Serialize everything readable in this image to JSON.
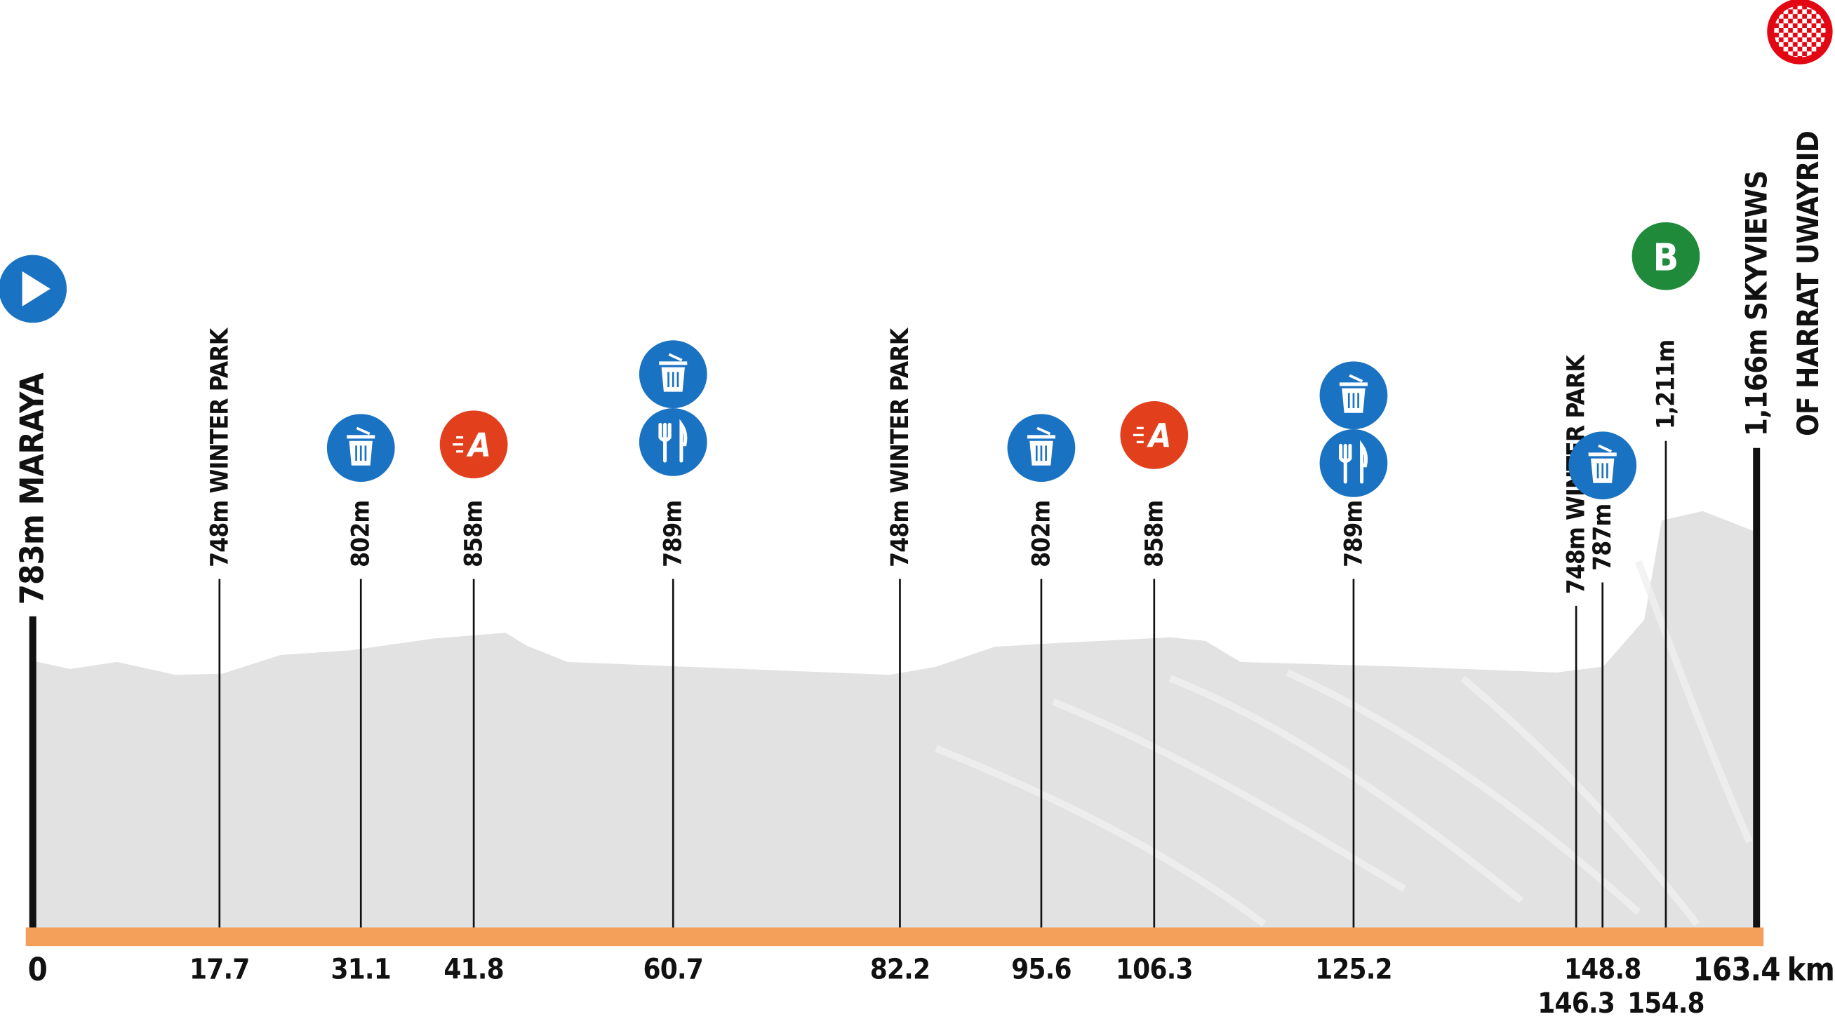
{
  "profile": {
    "distance_unit": "km",
    "points": [
      {
        "km": 0,
        "labels": [
          "783m MARAYA"
        ],
        "icons": [
          {
            "type": "start"
          }
        ]
      },
      {
        "km": 17.7,
        "labels": [
          "748m WINTER PARK"
        ],
        "icons": []
      },
      {
        "km": 31.1,
        "labels": [
          "802m"
        ],
        "icons": [
          {
            "type": "feed"
          }
        ]
      },
      {
        "km": 41.8,
        "labels": [
          "858m"
        ],
        "icons": [
          {
            "type": "sprint",
            "label": "A"
          }
        ]
      },
      {
        "km": 60.7,
        "labels": [
          "789m"
        ],
        "icons": [
          {
            "type": "feed"
          },
          {
            "type": "food"
          }
        ]
      },
      {
        "km": 82.2,
        "labels": [
          "748m WINTER PARK"
        ],
        "icons": []
      },
      {
        "km": 95.6,
        "labels": [
          "802m"
        ],
        "icons": [
          {
            "type": "feed"
          }
        ]
      },
      {
        "km": 106.3,
        "labels": [
          "858m"
        ],
        "icons": [
          {
            "type": "sprint",
            "label": "A"
          }
        ]
      },
      {
        "km": 125.2,
        "labels": [
          "789m"
        ],
        "icons": [
          {
            "type": "feed"
          },
          {
            "type": "food"
          }
        ]
      },
      {
        "km": 146.3,
        "labels": [
          "748m WINTER PARK"
        ],
        "icons": []
      },
      {
        "km": 148.8,
        "labels": [
          "787m"
        ],
        "icons": [
          {
            "type": "feed"
          }
        ]
      },
      {
        "km": 154.8,
        "labels": [
          "1,211m"
        ],
        "icons": [
          {
            "type": "bonus",
            "label": "B"
          }
        ]
      },
      {
        "km": 163.4,
        "labels": [
          "1,166m SKYVIEWS",
          "OF HARRAT UWAYRID"
        ],
        "icons": [
          {
            "type": "finish"
          }
        ]
      }
    ]
  }
}
